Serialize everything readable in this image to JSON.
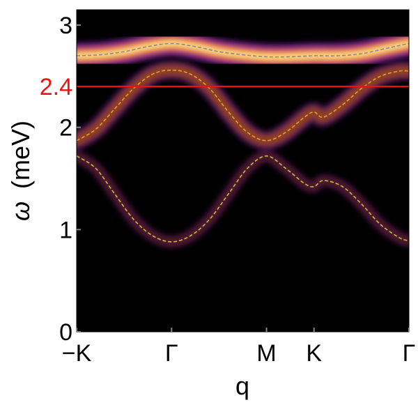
{
  "chart_data": {
    "type": "heatmap",
    "title": "",
    "xlabel": "q",
    "ylabel_symbol": "ω",
    "ylabel_unit": "(meV)",
    "x_ticks": [
      "−K",
      "Γ",
      "M",
      "K",
      "Γ"
    ],
    "x_tick_positions": [
      0,
      1,
      2,
      2.5,
      3.5
    ],
    "xlim": [
      0,
      3.5
    ],
    "y_ticks": [
      "0",
      "1",
      "2",
      "3"
    ],
    "y_tick_values": [
      0,
      1,
      2,
      3
    ],
    "ylim": [
      0,
      3.15
    ],
    "reference_line": {
      "value": 2.4,
      "label": "2.4",
      "color": "#ee1111"
    },
    "colormap": [
      "#000000",
      "#3a0f5a",
      "#7a2e8c",
      "#c23a6b",
      "#ee6a2f",
      "#f9a21e",
      "#fff3a0"
    ],
    "series": [
      {
        "color": "#8a8a9a",
        "x": [
          0,
          0.25,
          0.5,
          0.75,
          1.0,
          1.25,
          1.5,
          1.75,
          2.0,
          2.25,
          2.5,
          2.75,
          3.0,
          3.25,
          3.5
        ],
        "y": [
          2.7,
          2.71,
          2.74,
          2.79,
          2.82,
          2.79,
          2.74,
          2.71,
          2.69,
          2.69,
          2.7,
          2.7,
          2.72,
          2.77,
          2.82
        ]
      },
      {
        "color": "#d9a03a",
        "x": [
          0,
          0.2,
          0.4,
          0.6,
          0.8,
          1.0,
          1.2,
          1.4,
          1.6,
          1.8,
          2.0,
          2.2,
          2.4,
          2.5,
          2.6,
          2.8,
          3.0,
          3.2,
          3.4,
          3.5
        ],
        "y": [
          1.87,
          1.98,
          2.18,
          2.38,
          2.52,
          2.56,
          2.52,
          2.38,
          2.15,
          1.95,
          1.87,
          1.95,
          2.1,
          2.15,
          2.1,
          2.22,
          2.38,
          2.5,
          2.55,
          2.55
        ]
      },
      {
        "color": "#b9c23a",
        "x": [
          0,
          0.2,
          0.4,
          0.6,
          0.8,
          1.0,
          1.2,
          1.4,
          1.6,
          1.8,
          2.0,
          2.2,
          2.4,
          2.5,
          2.6,
          2.8,
          3.0,
          3.2,
          3.4,
          3.5
        ],
        "y": [
          1.72,
          1.6,
          1.35,
          1.1,
          0.94,
          0.88,
          0.94,
          1.1,
          1.35,
          1.6,
          1.72,
          1.6,
          1.45,
          1.42,
          1.48,
          1.42,
          1.25,
          1.05,
          0.92,
          0.89
        ]
      }
    ],
    "intensity_bands": [
      {
        "series_index": 0,
        "width": 0.12,
        "strength": 1.0
      },
      {
        "series_index": 1,
        "width": 0.09,
        "strength": 0.62
      },
      {
        "series_index": 2,
        "width": 0.06,
        "strength": 0.42
      }
    ]
  }
}
